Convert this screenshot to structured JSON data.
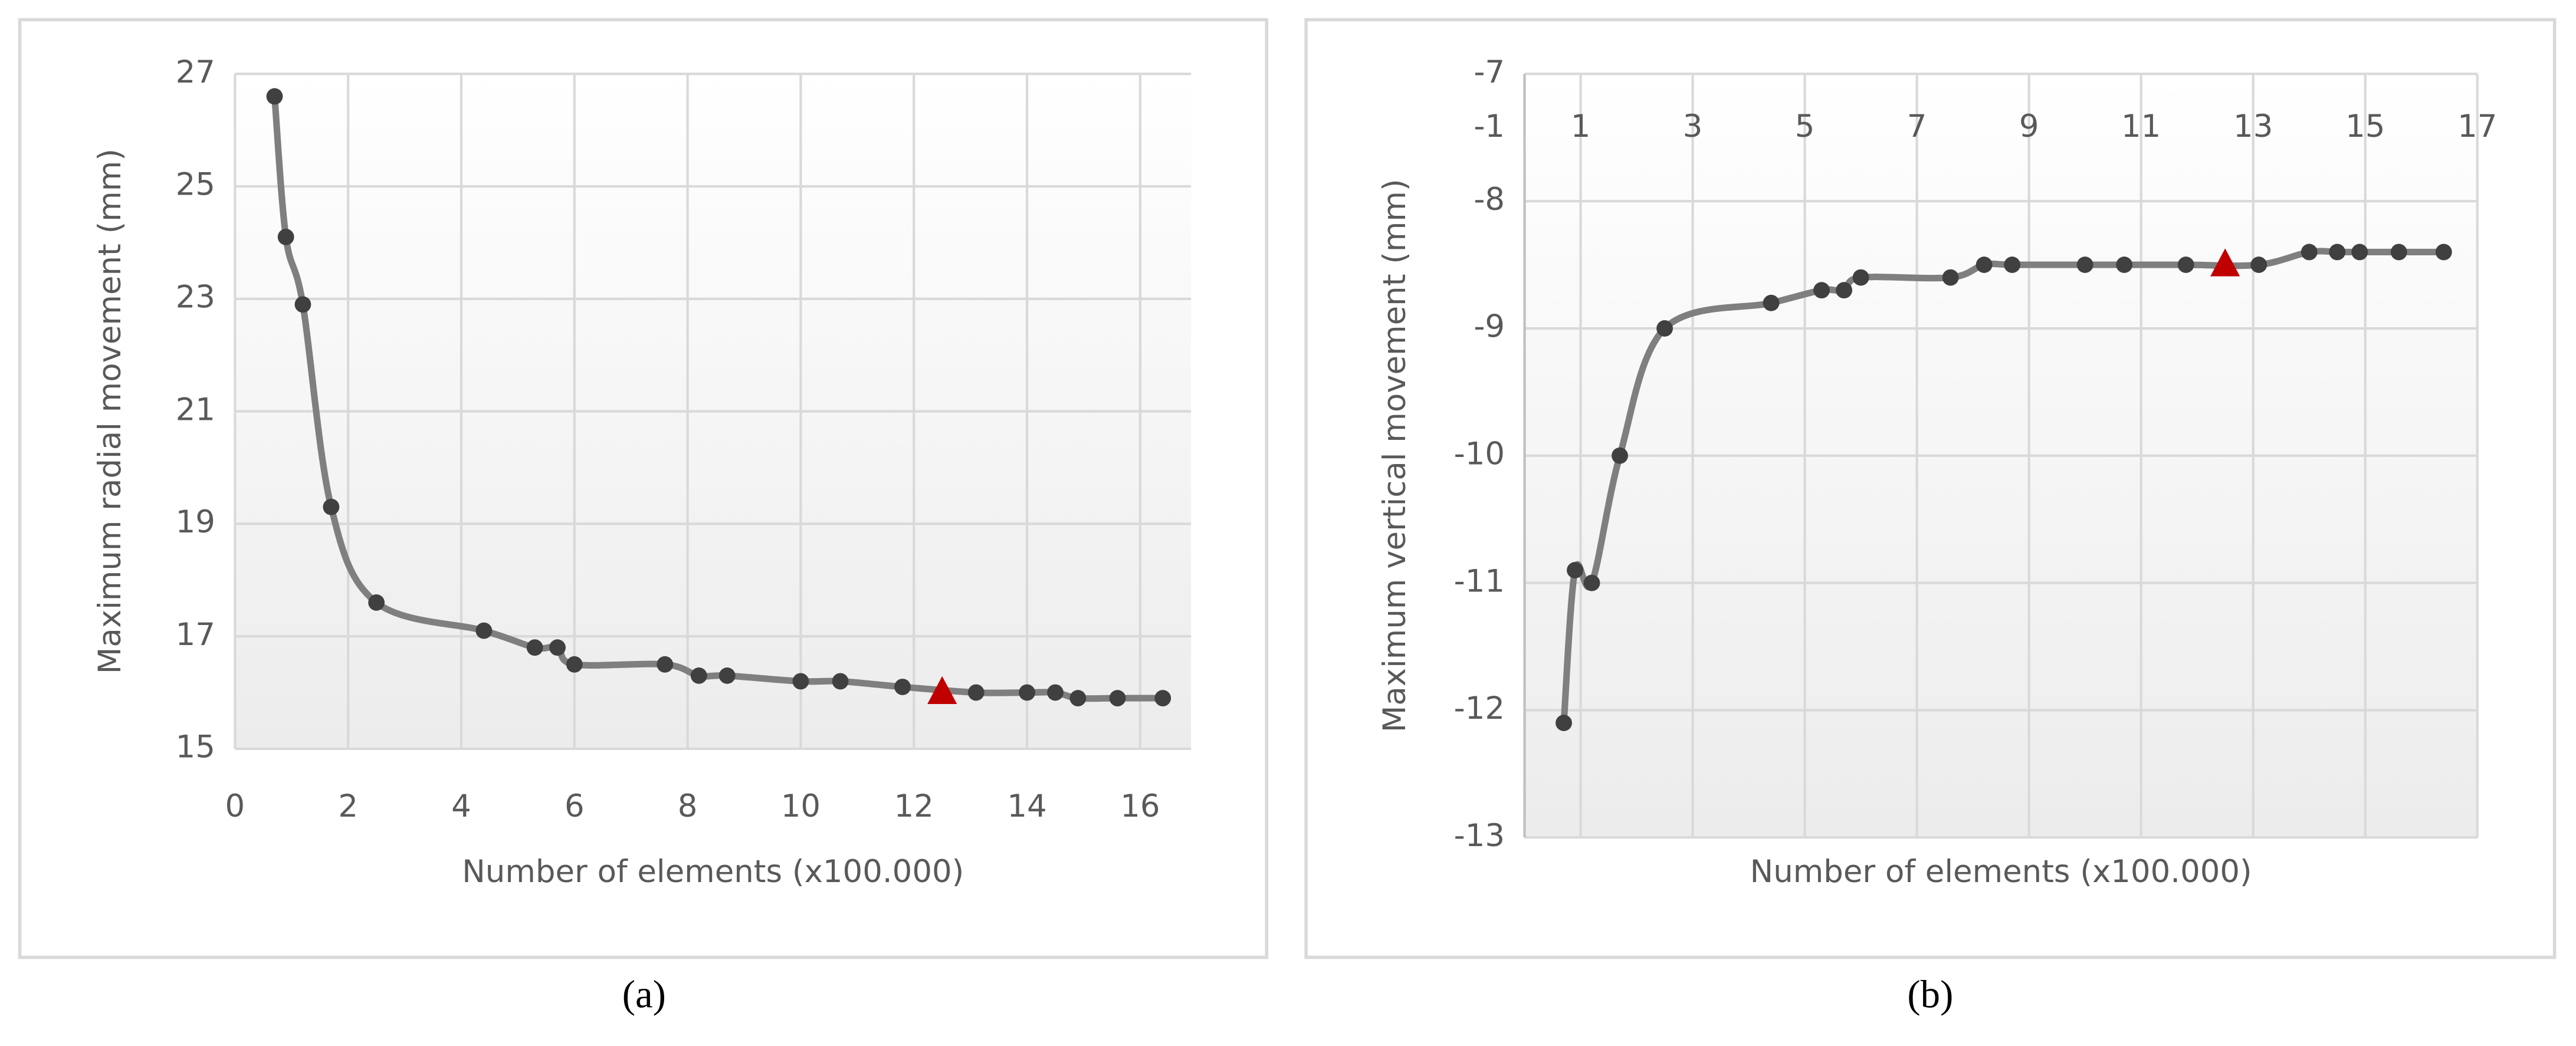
{
  "chart_data": [
    {
      "type": "line",
      "caption": "(a)",
      "x_label": "Number of elements (x100.000)",
      "y_label": "Maximum radial movement (mm)",
      "x": [
        0.7,
        0.9,
        1.2,
        1.7,
        2.5,
        4.4,
        5.3,
        5.7,
        6.0,
        7.6,
        8.2,
        8.7,
        10.0,
        10.7,
        11.8,
        13.1,
        14.0,
        14.5,
        14.9,
        15.6,
        16.4
      ],
      "series": [
        {
          "color": "#7f7f7f",
          "values": [
            26.6,
            24.1,
            22.9,
            19.3,
            17.6,
            17.1,
            16.8,
            16.8,
            16.5,
            16.5,
            16.3,
            16.3,
            16.2,
            16.2,
            16.1,
            16.0,
            16.0,
            16.0,
            15.9,
            15.9,
            15.9
          ]
        }
      ],
      "highlight": {
        "x": 12.5,
        "y": 16.0,
        "color": "#c00000"
      },
      "xlim": [
        0,
        16.9
      ],
      "xticks": [
        0,
        2,
        4,
        6,
        8,
        10,
        12,
        14,
        16
      ],
      "ylim": [
        15,
        27
      ],
      "yticks": [
        15,
        17,
        19,
        21,
        23,
        25,
        27
      ],
      "grid": true
    },
    {
      "type": "line",
      "caption": "(b)",
      "x_label": "Number of elements (x100.000)",
      "y_label": "Maximum vertical movement (mm)",
      "axis_crossing_label": "-1",
      "x": [
        0.7,
        0.9,
        1.2,
        1.7,
        2.5,
        4.4,
        5.3,
        5.7,
        6.0,
        7.6,
        8.2,
        8.7,
        10.0,
        10.7,
        11.8,
        13.1,
        14.0,
        14.5,
        14.9,
        15.6,
        16.4
      ],
      "series": [
        {
          "color": "#7f7f7f",
          "values": [
            -12.1,
            -10.9,
            -11.0,
            -10.0,
            -9.0,
            -8.8,
            -8.7,
            -8.7,
            -8.6,
            -8.6,
            -8.5,
            -8.5,
            -8.5,
            -8.5,
            -8.5,
            -8.5,
            -8.4,
            -8.4,
            -8.4,
            -8.4,
            -8.4
          ]
        }
      ],
      "highlight": {
        "x": 12.5,
        "y": -8.5,
        "color": "#c00000"
      },
      "xlim": [
        0,
        17
      ],
      "xticks": [
        1,
        3,
        5,
        7,
        9,
        11,
        13,
        15,
        17
      ],
      "ylim": [
        -13,
        -7
      ],
      "yticks": [
        -13,
        -12,
        -11,
        -10,
        -9,
        -8,
        -7
      ],
      "grid": true
    }
  ]
}
